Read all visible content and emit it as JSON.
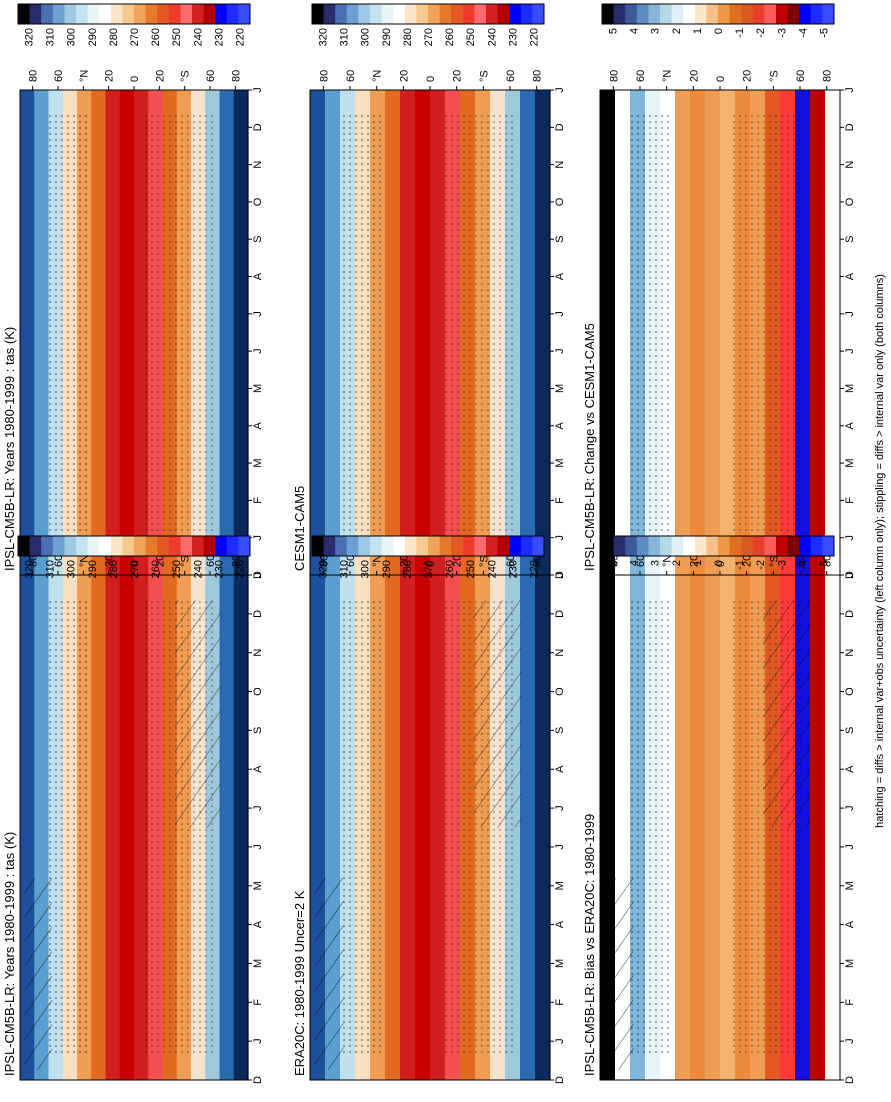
{
  "footnote": "hatching = diffs > internal var+obs uncertainty (left column only); stippling = diffs > internal var only (both columns)",
  "colors": {
    "abs_bar": [
      "#000000",
      "#2a2a6c",
      "#4a6fb5",
      "#6fa0d4",
      "#9fc9e2",
      "#c5e3ee",
      "#e8f5f7",
      "#ffffff",
      "#fbe6c8",
      "#f7c98f",
      "#f1a35a",
      "#e8782c",
      "#e25a22",
      "#ef3b2c",
      "#ff6a6a",
      "#d42020",
      "#b00000",
      "#0000ff",
      "#1e2cff",
      "#3a4cff"
    ],
    "diff_bar": [
      "#000000",
      "#2a2a6c",
      "#3d5a9c",
      "#5b8cc2",
      "#86b5d8",
      "#b4d7e8",
      "#dff0f5",
      "#ffffff",
      "#fde6c9",
      "#f6c08a",
      "#ee9946",
      "#e07020",
      "#d95a20",
      "#e8402c",
      "#ff5a5a",
      "#c00000",
      "#800000",
      "#0000ff",
      "#1e2cff",
      "#3a4cff"
    ],
    "panel_bands": [
      "#1d4f9c",
      "#5a9fd0",
      "#bfe0ec",
      "#fbe0c0",
      "#ef9d54",
      "#e06a20",
      "#cf1f1f",
      "#c80000",
      "#cf1f1f",
      "#f25050",
      "#e06a20",
      "#ef9d54",
      "#f5e3cf",
      "#9ec9dd",
      "#2a6ab0",
      "#0d2a5e"
    ]
  },
  "chart_data": [
    {
      "type": "heatmap",
      "title": "IPSL-CM5B-LR: Years 1980-1999 : tas (K)",
      "x_ticks": [
        "D",
        "J",
        "F",
        "M",
        "A",
        "M",
        "J",
        "J",
        "A",
        "S",
        "O",
        "N",
        "D",
        "J"
      ],
      "y_ticks": [
        "80",
        "60",
        "°N",
        "20",
        "0",
        "20",
        "°S",
        "60",
        "80"
      ],
      "colorbar_ticks": [
        "320",
        "310",
        "300",
        "290",
        "280",
        "270",
        "260",
        "250",
        "240",
        "230",
        "220"
      ],
      "hatching": true
    },
    {
      "type": "heatmap",
      "title": "IPSL-CM5B-LR: Years 1980-1999 : tas (K)",
      "x_ticks": [
        "D",
        "J",
        "F",
        "M",
        "A",
        "M",
        "J",
        "J",
        "A",
        "S",
        "O",
        "N",
        "D",
        "J"
      ],
      "y_ticks": [
        "80",
        "60",
        "°N",
        "20",
        "0",
        "20",
        "°S",
        "60",
        "80"
      ],
      "colorbar_ticks": [
        "320",
        "310",
        "300",
        "290",
        "280",
        "270",
        "260",
        "250",
        "240",
        "230",
        "220"
      ],
      "hatching": false
    },
    {
      "type": "heatmap",
      "title": "ERA20C: 1980-1999 Uncer=2 K",
      "x_ticks": [
        "D",
        "J",
        "F",
        "M",
        "A",
        "M",
        "J",
        "J",
        "A",
        "S",
        "O",
        "N",
        "D",
        "J"
      ],
      "y_ticks": [
        "80",
        "60",
        "°N",
        "20",
        "0",
        "20",
        "°S",
        "60",
        "80"
      ],
      "colorbar_ticks": [
        "320",
        "310",
        "300",
        "290",
        "280",
        "270",
        "260",
        "250",
        "240",
        "230",
        "220"
      ],
      "hatching": true
    },
    {
      "type": "heatmap",
      "title": "CESM1-CAM5",
      "x_ticks": [
        "D",
        "J",
        "F",
        "M",
        "A",
        "M",
        "J",
        "J",
        "A",
        "S",
        "O",
        "N",
        "D",
        "J"
      ],
      "y_ticks": [
        "80",
        "60",
        "°N",
        "20",
        "0",
        "20",
        "°S",
        "60",
        "80"
      ],
      "colorbar_ticks": [
        "320",
        "310",
        "300",
        "290",
        "280",
        "270",
        "260",
        "250",
        "240",
        "230",
        "220"
      ],
      "hatching": false
    },
    {
      "type": "heatmap",
      "title": "IPSL-CM5B-LR: Bias vs ERA20C: 1980-1999",
      "x_ticks": [
        "D",
        "J",
        "F",
        "M",
        "A",
        "M",
        "J",
        "J",
        "A",
        "S",
        "O",
        "N",
        "D",
        "J"
      ],
      "y_ticks": [
        "80",
        "60",
        "°N",
        "20",
        "0",
        "20",
        "°S",
        "60",
        "80"
      ],
      "colorbar_ticks": [
        "5",
        "4",
        "3",
        "2",
        "1",
        "0",
        "-1",
        "-2",
        "-3",
        "-4",
        "-5"
      ],
      "hatching": true
    },
    {
      "type": "heatmap",
      "title": "IPSL-CM5B-LR: Change vs CESM1-CAM5",
      "x_ticks": [
        "D",
        "J",
        "F",
        "M",
        "A",
        "M",
        "J",
        "J",
        "A",
        "S",
        "O",
        "N",
        "D",
        "J"
      ],
      "y_ticks": [
        "80",
        "60",
        "°N",
        "20",
        "0",
        "20",
        "°S",
        "60",
        "80"
      ],
      "colorbar_ticks": [
        "5",
        "4",
        "3",
        "2",
        "1",
        "0",
        "-1",
        "-2",
        "-3",
        "-4",
        "-5"
      ],
      "hatching": false
    }
  ]
}
